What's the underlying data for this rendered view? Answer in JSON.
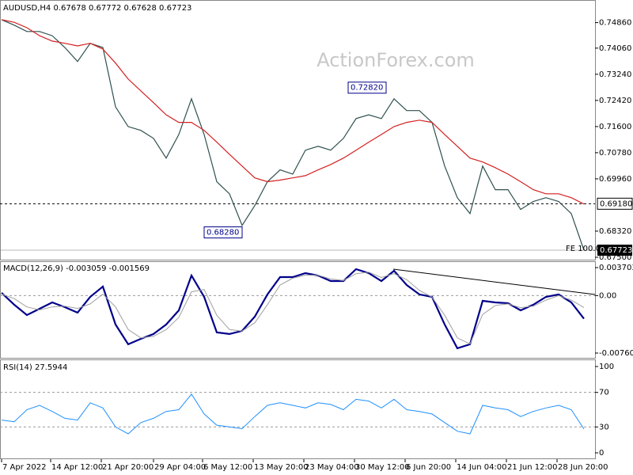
{
  "chart_data": [
    {
      "type": "line",
      "title": "AUDUSD,H4  0.67678 0.67772 0.67628 0.67723",
      "watermark": "ActionForex.com",
      "x": [
        0,
        8,
        16,
        24,
        32,
        40,
        48,
        56,
        64,
        72,
        80,
        88,
        96,
        104,
        112,
        120,
        128,
        136,
        144,
        152,
        160,
        168,
        176,
        184,
        192,
        200,
        208,
        216,
        224,
        232,
        240,
        248,
        256,
        264,
        272,
        280,
        288,
        296,
        304,
        312,
        320,
        328,
        336,
        344,
        352,
        360,
        368
      ],
      "xlim": [
        0,
        368
      ],
      "series": [
        {
          "color": "#2f4f4f",
          "values": [
            0.7495,
            0.7478,
            0.7458,
            0.7458,
            0.7445,
            0.7408,
            0.7364,
            0.7421,
            0.7408,
            0.7222,
            0.716,
            0.7148,
            0.7123,
            0.7061,
            0.7135,
            0.7247,
            0.7135,
            0.6987,
            0.6949,
            0.685,
            0.6912,
            0.6987,
            0.7024,
            0.7011,
            0.7086,
            0.7098,
            0.7086,
            0.7123,
            0.7185,
            0.7197,
            0.7185,
            0.7247,
            0.721,
            0.721,
            0.7173,
            0.7036,
            0.6937,
            0.6887,
            0.7036,
            0.6962,
            0.6962,
            0.69,
            0.6925,
            0.6937,
            0.6925,
            0.6887,
            0.67723
          ]
        },
        {
          "color": "#d42020",
          "values": [
            0.7495,
            0.7487,
            0.747,
            0.7445,
            0.7428,
            0.7421,
            0.7413,
            0.7421,
            0.7403,
            0.7359,
            0.7309,
            0.7272,
            0.7235,
            0.7197,
            0.7173,
            0.7173,
            0.7148,
            0.7111,
            0.7073,
            0.7036,
            0.6999,
            0.6987,
            0.6992,
            0.6999,
            0.7006,
            0.7024,
            0.7041,
            0.7061,
            0.7086,
            0.7111,
            0.7135,
            0.716,
            0.7173,
            0.718,
            0.7173,
            0.7135,
            0.7098,
            0.7061,
            0.7049,
            0.7031,
            0.7011,
            0.6987,
            0.6962,
            0.6949,
            0.6949,
            0.6937,
            0.6917
          ]
        }
      ],
      "ylim": [
        0.6745,
        0.7547
      ],
      "yticks": [
        {
          "value": 0.7486,
          "label": "0.74860"
        },
        {
          "value": 0.7406,
          "label": "0.74060"
        },
        {
          "value": 0.7324,
          "label": "0.73240"
        },
        {
          "value": 0.7242,
          "label": "0.72420"
        },
        {
          "value": 0.716,
          "label": "0.71600"
        },
        {
          "value": 0.7078,
          "label": "0.70780"
        },
        {
          "value": 0.6996,
          "label": "0.69960"
        },
        {
          "value": 0.6832,
          "label": "0.68320"
        },
        {
          "value": 0.675,
          "label": "0.67500"
        }
      ],
      "hline": {
        "value": 0.6918,
        "label": "0.69180"
      },
      "last": {
        "value": 0.67723,
        "label": "0.67723"
      },
      "annotations": [
        {
          "value": 0.7282,
          "label": "0.72820"
        },
        {
          "value": 0.6828,
          "label": "0.68280"
        }
      ],
      "note": "FE 100.0"
    },
    {
      "type": "line",
      "title": "MACD(12,26,9) -0.003059 -0.001569",
      "x": [
        0,
        8,
        16,
        24,
        32,
        40,
        48,
        56,
        64,
        72,
        80,
        88,
        96,
        104,
        112,
        120,
        128,
        136,
        144,
        152,
        160,
        168,
        176,
        184,
        192,
        200,
        208,
        216,
        224,
        232,
        240,
        248,
        256,
        264,
        272,
        280,
        288,
        296,
        304,
        312,
        320,
        328,
        336,
        344,
        352,
        360,
        368
      ],
      "xlim": [
        0,
        368
      ],
      "series": [
        {
          "color": "#00008b",
          "width": 2.2,
          "values": [
            0.00036,
            -0.00121,
            -0.00258,
            -0.00174,
            -0.0009,
            -0.00153,
            -0.00226,
            -0.00017,
            0.00119,
            -0.00383,
            -0.00645,
            -0.00572,
            -0.00509,
            -0.00383,
            -0.00195,
            0.00266,
            -0.00017,
            -0.00488,
            -0.00509,
            -0.00467,
            -0.00279,
            0.00015,
            0.00245,
            0.00245,
            0.00297,
            0.00266,
            0.00193,
            0.00193,
            0.0035,
            0.00297,
            0.00193,
            0.00329,
            0.0014,
            0.00015,
            -0.00017,
            -0.00383,
            -0.00697,
            -0.00645,
            -0.00069,
            -0.0009,
            -0.00101,
            -0.00195,
            -0.00121,
            -0.00017,
            0.00015,
            -0.0009,
            -0.00306
          ]
        },
        {
          "color": "#a0a0a0",
          "width": 1,
          "values": [
            0.0002,
            -0.0004,
            -0.0015,
            -0.0019,
            -0.0015,
            -0.0014,
            -0.0017,
            -0.0011,
            0.0002,
            -0.0015,
            -0.0045,
            -0.0056,
            -0.0054,
            -0.0045,
            -0.0029,
            0.0005,
            0.0008,
            -0.0026,
            -0.0045,
            -0.0047,
            -0.0036,
            -0.0012,
            0.0014,
            0.0023,
            0.0027,
            0.0027,
            0.0022,
            0.002,
            0.0029,
            0.0031,
            0.0024,
            0.0029,
            0.0021,
            0.0007,
            -0.0002,
            -0.0026,
            -0.0056,
            -0.0064,
            -0.0025,
            -0.0013,
            -0.0011,
            -0.0016,
            -0.0014,
            -0.0006,
            0,
            -0.0006,
            -0.00157
          ]
        }
      ],
      "ylim": [
        -0.00824,
        0.00444
      ],
      "yticks": [
        0.003703,
        {
          "value": 0,
          "label": "0.00"
        },
        -0.007608
      ],
      "levels": [
        0
      ]
    },
    {
      "type": "line",
      "title": "RSI(14) 27.5944",
      "x": [
        0,
        8,
        16,
        24,
        32,
        40,
        48,
        56,
        64,
        72,
        80,
        88,
        96,
        104,
        112,
        120,
        128,
        136,
        144,
        152,
        160,
        168,
        176,
        184,
        192,
        200,
        208,
        216,
        224,
        232,
        240,
        248,
        256,
        264,
        272,
        280,
        288,
        296,
        304,
        312,
        320,
        328,
        336,
        344,
        352,
        360,
        368
      ],
      "xlim": [
        0,
        368
      ],
      "series": [
        {
          "color": "#1e90ff",
          "width": 1,
          "values": [
            38,
            36,
            50,
            55,
            48,
            40,
            38,
            58,
            52,
            30,
            22,
            35,
            40,
            48,
            50,
            68,
            45,
            32,
            30,
            28,
            42,
            55,
            58,
            55,
            52,
            58,
            56,
            50,
            62,
            60,
            52,
            62,
            50,
            48,
            45,
            35,
            25,
            22,
            55,
            52,
            50,
            42,
            48,
            52,
            55,
            50,
            27.59
          ]
        }
      ],
      "ylim": [
        -5.5,
        107.3
      ],
      "yticks": [
        100,
        70,
        30,
        0
      ],
      "levels": [
        70,
        30
      ],
      "xticks": [
        {
          "value": 0,
          "label": "7 Apr 2022"
        },
        {
          "value": 31,
          "label": "14 Apr 12:00"
        },
        {
          "value": 63,
          "label": "21 Apr 20:00"
        },
        {
          "value": 96,
          "label": "29 Apr 04:00"
        },
        {
          "value": 127,
          "label": "6 May 12:00"
        },
        {
          "value": 159,
          "label": "13 May 20:00"
        },
        {
          "value": 191,
          "label": "23 May 04:00"
        },
        {
          "value": 223,
          "label": "30 May 12:00"
        },
        {
          "value": 255,
          "label": "6 Jun 20:00"
        },
        {
          "value": 287,
          "label": "14 Jun 04:00"
        },
        {
          "value": 319,
          "label": "21 Jun 12:00"
        },
        {
          "value": 351,
          "label": "28 Jun 20:00"
        }
      ]
    }
  ]
}
